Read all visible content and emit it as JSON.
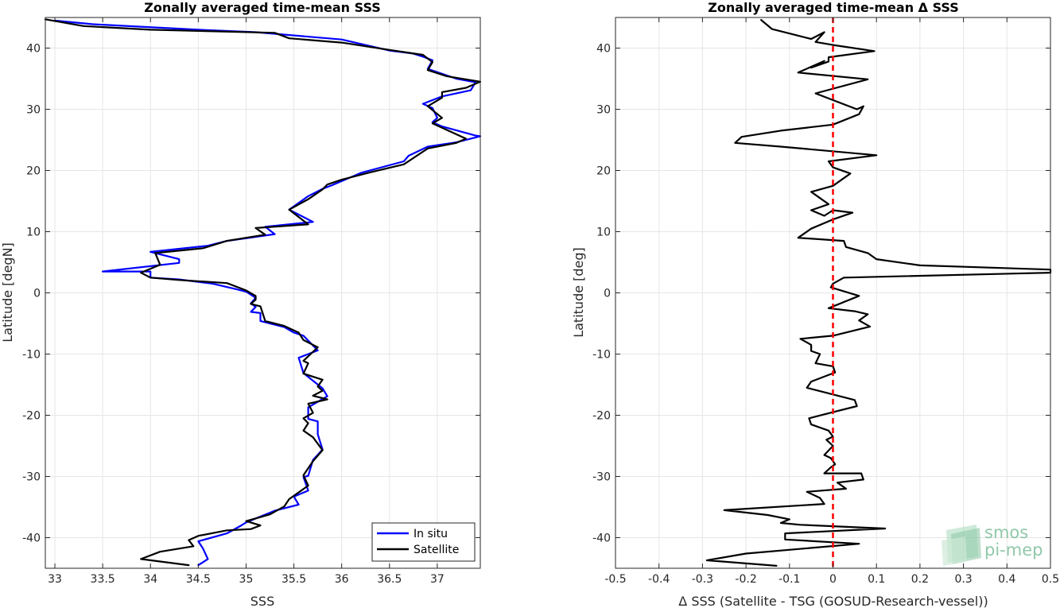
{
  "chart_data": [
    {
      "type": "line",
      "title": "Zonally averaged time-mean SSS",
      "xlabel": "SSS",
      "ylabel": "Latitude [degN]",
      "xlim": [
        32.9,
        37.45
      ],
      "ylim": [
        -45,
        45
      ],
      "xticks": [
        33,
        33.5,
        34,
        34.5,
        35,
        35.5,
        36,
        36.5,
        37
      ],
      "xtick_labels": [
        "33",
        "33.5",
        "34",
        "34.5",
        "35",
        "35.5",
        "36",
        "36.5",
        "37"
      ],
      "yticks": [
        40,
        30,
        20,
        10,
        0,
        -10,
        -20,
        -30,
        -40
      ],
      "ytick_labels": [
        "40",
        "30",
        "20",
        "10",
        "0",
        "-10",
        "-20",
        "-30",
        "-40"
      ],
      "grid": true,
      "legend": "bottom-right",
      "series": [
        {
          "name": "In situ",
          "color": "#0000ff",
          "points": [
            [
              33.0,
              44.5
            ],
            [
              33.4,
              43.9
            ],
            [
              34.5,
              43.0
            ],
            [
              35.1,
              42.6
            ],
            [
              36.0,
              41.4
            ],
            [
              36.5,
              39.6
            ],
            [
              36.75,
              39.1
            ],
            [
              36.85,
              38.6
            ],
            [
              36.95,
              38.0
            ],
            [
              36.9,
              36.6
            ],
            [
              37.2,
              35.0
            ],
            [
              37.4,
              34.4
            ],
            [
              37.35,
              33.1
            ],
            [
              37.05,
              32.1
            ],
            [
              36.85,
              30.9
            ],
            [
              36.95,
              30.2
            ],
            [
              37.0,
              28.6
            ],
            [
              36.95,
              27.9
            ],
            [
              37.05,
              27.2
            ],
            [
              37.4,
              25.7
            ],
            [
              37.45,
              25.6
            ],
            [
              37.2,
              24.6
            ],
            [
              36.9,
              23.9
            ],
            [
              36.7,
              22.4
            ],
            [
              36.65,
              21.5
            ],
            [
              36.2,
              19.6
            ],
            [
              35.9,
              17.6
            ],
            [
              35.8,
              17.0
            ],
            [
              35.65,
              15.8
            ],
            [
              35.45,
              13.6
            ],
            [
              35.7,
              11.6
            ],
            [
              35.2,
              10.8
            ],
            [
              35.3,
              9.6
            ],
            [
              34.8,
              8.5
            ],
            [
              34.6,
              7.7
            ],
            [
              34.0,
              6.7
            ],
            [
              34.3,
              5.5
            ],
            [
              34.3,
              4.9
            ],
            [
              33.5,
              3.5
            ],
            [
              34.0,
              3.5
            ],
            [
              34.0,
              2.5
            ],
            [
              34.3,
              2.2
            ],
            [
              34.65,
              1.5
            ],
            [
              34.9,
              0.6
            ],
            [
              35.0,
              0.2
            ],
            [
              35.1,
              -0.8
            ],
            [
              35.05,
              -1.7
            ],
            [
              35.1,
              -2.3
            ],
            [
              35.05,
              -3.1
            ],
            [
              35.15,
              -3.3
            ],
            [
              35.15,
              -4.6
            ],
            [
              35.4,
              -5.6
            ],
            [
              35.5,
              -6.5
            ],
            [
              35.6,
              -7.0
            ],
            [
              35.75,
              -9.4
            ],
            [
              35.55,
              -10.6
            ],
            [
              35.6,
              -13.1
            ],
            [
              35.8,
              -15.6
            ],
            [
              35.85,
              -16.9
            ],
            [
              35.65,
              -18.7
            ],
            [
              35.65,
              -20.6
            ],
            [
              35.75,
              -21.0
            ],
            [
              35.75,
              -23.1
            ],
            [
              35.8,
              -25.6
            ],
            [
              35.7,
              -27.3
            ],
            [
              35.65,
              -29.9
            ],
            [
              35.6,
              -30.1
            ],
            [
              35.65,
              -32.3
            ],
            [
              35.5,
              -33.3
            ],
            [
              35.55,
              -34.6
            ],
            [
              35.3,
              -35.6
            ],
            [
              35.0,
              -37.5
            ],
            [
              34.95,
              -38.0
            ],
            [
              34.8,
              -39.3
            ],
            [
              34.5,
              -40.6
            ],
            [
              34.55,
              -41.8
            ],
            [
              34.6,
              -43.5
            ],
            [
              34.5,
              -44.5
            ]
          ]
        },
        {
          "name": "Satellite",
          "color": "#000000",
          "points": [
            [
              32.9,
              44.7
            ],
            [
              33.3,
              43.6
            ],
            [
              34.0,
              43.0
            ],
            [
              35.3,
              42.5
            ],
            [
              35.45,
              41.6
            ],
            [
              36.0,
              40.9
            ],
            [
              36.5,
              39.7
            ],
            [
              36.85,
              38.9
            ],
            [
              36.95,
              37.7
            ],
            [
              36.9,
              36.4
            ],
            [
              37.1,
              35.4
            ],
            [
              37.45,
              34.5
            ],
            [
              37.3,
              33.5
            ],
            [
              37.05,
              32.8
            ],
            [
              37.05,
              31.9
            ],
            [
              36.9,
              30.5
            ],
            [
              37.05,
              28.6
            ],
            [
              36.95,
              27.7
            ],
            [
              37.3,
              25.2
            ],
            [
              37.2,
              24.5
            ],
            [
              36.9,
              23.6
            ],
            [
              36.65,
              21.0
            ],
            [
              36.3,
              19.7
            ],
            [
              36.0,
              18.5
            ],
            [
              35.85,
              17.7
            ],
            [
              35.8,
              16.9
            ],
            [
              35.65,
              15.3
            ],
            [
              35.45,
              13.6
            ],
            [
              35.65,
              11.2
            ],
            [
              35.1,
              10.6
            ],
            [
              35.2,
              9.5
            ],
            [
              34.8,
              8.5
            ],
            [
              34.55,
              7.3
            ],
            [
              34.05,
              6.5
            ],
            [
              34.1,
              4.6
            ],
            [
              33.9,
              3.3
            ],
            [
              34.0,
              2.5
            ],
            [
              34.3,
              2.1
            ],
            [
              34.8,
              1.6
            ],
            [
              35.0,
              0.4
            ],
            [
              35.1,
              -0.5
            ],
            [
              35.1,
              -1.1
            ],
            [
              35.05,
              -1.8
            ],
            [
              35.15,
              -2.2
            ],
            [
              35.2,
              -4.6
            ],
            [
              35.4,
              -5.4
            ],
            [
              35.55,
              -6.5
            ],
            [
              35.6,
              -7.7
            ],
            [
              35.75,
              -8.9
            ],
            [
              35.6,
              -11.1
            ],
            [
              35.65,
              -11.5
            ],
            [
              35.6,
              -13.2
            ],
            [
              35.8,
              -14.2
            ],
            [
              35.75,
              -15.3
            ],
            [
              35.8,
              -16.0
            ],
            [
              35.7,
              -16.8
            ],
            [
              35.85,
              -17.4
            ],
            [
              35.65,
              -18.1
            ],
            [
              35.7,
              -19.6
            ],
            [
              35.6,
              -20.5
            ],
            [
              35.65,
              -21.3
            ],
            [
              35.6,
              -22.5
            ],
            [
              35.7,
              -23.6
            ],
            [
              35.8,
              -25.7
            ],
            [
              35.7,
              -27.5
            ],
            [
              35.6,
              -29.8
            ],
            [
              35.65,
              -31.5
            ],
            [
              35.45,
              -33.7
            ],
            [
              35.4,
              -34.9
            ],
            [
              35.25,
              -36.2
            ],
            [
              35.0,
              -37.3
            ],
            [
              35.15,
              -38.0
            ],
            [
              35.05,
              -38.6
            ],
            [
              34.8,
              -38.8
            ],
            [
              34.5,
              -39.7
            ],
            [
              34.4,
              -40.4
            ],
            [
              34.45,
              -41.4
            ],
            [
              34.1,
              -42.3
            ],
            [
              33.9,
              -43.5
            ],
            [
              34.4,
              -44.5
            ]
          ]
        }
      ]
    },
    {
      "type": "line",
      "title": "Zonally averaged time-mean Δ SSS",
      "xlabel": "Δ SSS (Satellite - TSG (GOSUD-Research-vessel))",
      "ylabel": "Latitude [deg]",
      "xlim": [
        -0.5,
        0.5
      ],
      "ylim": [
        -45,
        45
      ],
      "xticks": [
        -0.5,
        -0.4,
        -0.3,
        -0.2,
        -0.1,
        0,
        0.1,
        0.2,
        0.3,
        0.4,
        0.5
      ],
      "xtick_labels": [
        "-0.5",
        "-0.4",
        "-0.3",
        "-0.2",
        "-0.1",
        "0",
        "0.1",
        "0.2",
        "0.3",
        "0.4",
        "0.5"
      ],
      "yticks": [
        40,
        30,
        20,
        10,
        0,
        -10,
        -20,
        -30,
        -40
      ],
      "ytick_labels": [
        "40",
        "30",
        "20",
        "10",
        "0",
        "-10",
        "-20",
        "-30",
        "-40"
      ],
      "grid": true,
      "reference_line": {
        "x": 0,
        "color": "#ff0000",
        "style": "dashed"
      },
      "series": [
        {
          "name": "",
          "color": "#000000",
          "points": [
            [
              -0.165,
              44.6
            ],
            [
              -0.14,
              43.1
            ],
            [
              -0.05,
              41.5
            ],
            [
              -0.02,
              42.6
            ],
            [
              -0.04,
              41.0
            ],
            [
              0.0,
              40.5
            ],
            [
              0.095,
              39.5
            ],
            [
              -0.01,
              38.5
            ],
            [
              -0.01,
              37.8
            ],
            [
              -0.05,
              36.8
            ],
            [
              -0.02,
              37.9
            ],
            [
              -0.08,
              36.0
            ],
            [
              0.08,
              34.9
            ],
            [
              -0.04,
              32.6
            ],
            [
              0.055,
              30.0
            ],
            [
              0.07,
              30.5
            ],
            [
              0.06,
              29.2
            ],
            [
              0.0,
              27.5
            ],
            [
              -0.12,
              26.5
            ],
            [
              -0.21,
              25.5
            ],
            [
              -0.225,
              24.5
            ],
            [
              -0.12,
              23.9
            ],
            [
              0.1,
              22.5
            ],
            [
              -0.01,
              21.5
            ],
            [
              0.0,
              20.5
            ],
            [
              0.04,
              19.5
            ],
            [
              0.0,
              17.5
            ],
            [
              -0.05,
              16.5
            ],
            [
              -0.03,
              15.5
            ],
            [
              -0.01,
              14.5
            ],
            [
              -0.05,
              13.5
            ],
            [
              -0.02,
              12.6
            ],
            [
              0.0,
              13.5
            ],
            [
              0.045,
              13.1
            ],
            [
              0.0,
              12.0
            ],
            [
              -0.05,
              10.5
            ],
            [
              -0.07,
              9.5
            ],
            [
              -0.08,
              9.0
            ],
            [
              0.025,
              8.5
            ],
            [
              0.03,
              7.5
            ],
            [
              0.08,
              6.5
            ],
            [
              0.1,
              5.5
            ],
            [
              0.2,
              4.5
            ],
            [
              0.5,
              3.8
            ],
            [
              0.5,
              3.3
            ],
            [
              0.025,
              2.5
            ],
            [
              0.0,
              1.5
            ],
            [
              -0.005,
              0.9
            ],
            [
              0.06,
              -0.5
            ],
            [
              -0.01,
              -2.5
            ],
            [
              0.05,
              -3.0
            ],
            [
              0.08,
              -3.5
            ],
            [
              0.06,
              -4.5
            ],
            [
              0.085,
              -5.5
            ],
            [
              0.0,
              -7.0
            ],
            [
              -0.075,
              -7.5
            ],
            [
              -0.05,
              -8.5
            ],
            [
              -0.05,
              -9.5
            ],
            [
              -0.03,
              -10.0
            ],
            [
              -0.04,
              -11.5
            ],
            [
              0.0,
              -12.0
            ],
            [
              0.005,
              -13.0
            ],
            [
              -0.05,
              -14.5
            ],
            [
              -0.06,
              -15.5
            ],
            [
              0.05,
              -17.5
            ],
            [
              0.055,
              -18.5
            ],
            [
              0.0,
              -19.5
            ],
            [
              -0.055,
              -20.5
            ],
            [
              -0.05,
              -21.5
            ],
            [
              -0.01,
              -22.5
            ],
            [
              0.0,
              -23.5
            ],
            [
              -0.015,
              -24.0
            ],
            [
              0.0,
              -25.0
            ],
            [
              -0.02,
              -26.5
            ],
            [
              -0.005,
              -27.0
            ],
            [
              0.005,
              -28.0
            ],
            [
              -0.005,
              -28.5
            ],
            [
              -0.02,
              -29.5
            ],
            [
              0.065,
              -29.5
            ],
            [
              0.07,
              -30.5
            ],
            [
              0.01,
              -31.0
            ],
            [
              0.03,
              -32.0
            ],
            [
              -0.06,
              -32.5
            ],
            [
              -0.03,
              -33.5
            ],
            [
              -0.02,
              -34.5
            ],
            [
              -0.25,
              -35.5
            ],
            [
              -0.15,
              -36.3
            ],
            [
              -0.1,
              -37.0
            ],
            [
              -0.12,
              -37.6
            ],
            [
              -0.075,
              -37.9
            ],
            [
              0.12,
              -38.5
            ],
            [
              -0.11,
              -39.3
            ],
            [
              -0.11,
              -40.3
            ],
            [
              0.06,
              -41.0
            ],
            [
              -0.2,
              -42.6
            ],
            [
              -0.29,
              -43.7
            ],
            [
              -0.13,
              -44.6
            ]
          ]
        }
      ]
    }
  ],
  "logo": {
    "line1": "smos",
    "line2": "pi-mep"
  }
}
